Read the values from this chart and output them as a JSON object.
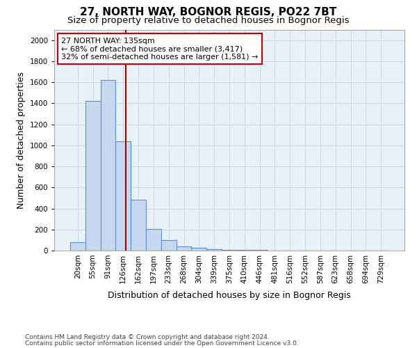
{
  "title": "27, NORTH WAY, BOGNOR REGIS, PO22 7BT",
  "subtitle": "Size of property relative to detached houses in Bognor Regis",
  "xlabel": "Distribution of detached houses by size in Bognor Regis",
  "ylabel": "Number of detached properties",
  "categories": [
    "20sqm",
    "55sqm",
    "91sqm",
    "126sqm",
    "162sqm",
    "197sqm",
    "233sqm",
    "268sqm",
    "304sqm",
    "339sqm",
    "375sqm",
    "410sqm",
    "446sqm",
    "481sqm",
    "516sqm",
    "552sqm",
    "587sqm",
    "623sqm",
    "658sqm",
    "694sqm",
    "729sqm"
  ],
  "values": [
    80,
    1420,
    1620,
    1040,
    480,
    205,
    100,
    40,
    25,
    15,
    8,
    5,
    4,
    3,
    2,
    2,
    1.5,
    1,
    1,
    1,
    1
  ],
  "bar_color": "#c5d8f0",
  "bar_edge_color": "#5b8fc9",
  "vline_x": 3.18,
  "vline_color": "#990000",
  "annotation_text": "27 NORTH WAY: 135sqm\n← 68% of detached houses are smaller (3,417)\n32% of semi-detached houses are larger (1,581) →",
  "annotation_box_color": "#ffffff",
  "annotation_box_edge": "#cc0000",
  "ylim": [
    0,
    2100
  ],
  "yticks": [
    0,
    200,
    400,
    600,
    800,
    1000,
    1200,
    1400,
    1600,
    1800,
    2000
  ],
  "footer_line1": "Contains HM Land Registry data © Crown copyright and database right 2024.",
  "footer_line2": "Contains public sector information licensed under the Open Government Licence v3.0.",
  "bg_color": "#ffffff",
  "plot_bg_color": "#e8f0f8",
  "grid_color": "#c8d0dc",
  "title_fontsize": 11,
  "subtitle_fontsize": 9.5,
  "axis_label_fontsize": 9,
  "tick_fontsize": 7.5,
  "annot_fontsize": 8,
  "footer_fontsize": 6.5
}
